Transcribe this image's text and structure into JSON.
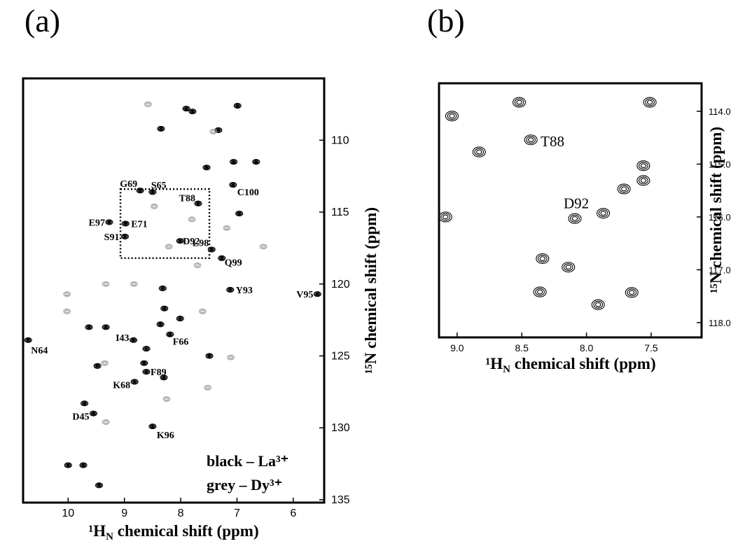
{
  "chart_data": [
    {
      "type": "scatter",
      "panel_label": "(a)",
      "xlabel": [
        "¹H",
        "N",
        " chemical shift (ppm)"
      ],
      "ylabel": "¹⁵N chemical shift (ppm)",
      "xlim": [
        10.8,
        5.45
      ],
      "ylim": [
        105.7,
        135.2
      ],
      "xticks": [
        10,
        9,
        8,
        7,
        6
      ],
      "yticks": [
        110,
        115,
        120,
        125,
        130,
        135
      ],
      "inset_box": {
        "x": [
          9.07,
          7.49
        ],
        "y": [
          113.4,
          118.2
        ]
      },
      "series": [
        {
          "name": "black – La³⁺",
          "color": "#000000",
          "x": [
            8.72,
            8.5,
            7.69,
            9.27,
            8.98,
            8.99,
            8.01,
            7.45,
            7.27,
            7.07,
            7.12,
            5.57,
            10.71,
            8.19,
            8.84,
            8.61,
            8.82,
            9.55,
            8.5,
            7.9,
            7.79,
            6.99,
            8.35,
            7.33,
            7.54,
            7.06,
            6.66,
            6.96,
            8.32,
            8.29,
            8.01,
            8.36,
            9.33,
            9.63,
            8.61,
            9.48,
            8.3,
            9.71,
            10.0,
            9.73,
            9.45,
            8.65,
            7.49
          ],
          "values": [
            113.5,
            113.6,
            114.4,
            115.7,
            115.8,
            116.7,
            117.0,
            117.6,
            118.2,
            113.1,
            120.4,
            120.7,
            123.9,
            123.5,
            123.9,
            126.1,
            126.8,
            129.0,
            129.9,
            107.8,
            108.0,
            107.6,
            109.2,
            109.3,
            111.9,
            111.5,
            111.5,
            115.1,
            120.3,
            121.7,
            122.4,
            122.8,
            123.0,
            123.0,
            124.5,
            125.7,
            126.5,
            128.3,
            132.6,
            132.6,
            134.0,
            125.5,
            125.0
          ],
          "labels": [
            "G69",
            "S65",
            "T88",
            "E97",
            "E71",
            "S91",
            "D92",
            "L98",
            "Q99",
            "C100",
            "Y93",
            "V95",
            "N64",
            "F66",
            "I43",
            "F89",
            "K68",
            "D45",
            "K96",
            null,
            null,
            null,
            null,
            null,
            null,
            null,
            null,
            null,
            null,
            null,
            null,
            null,
            null,
            null,
            null,
            null,
            null,
            null,
            null,
            null,
            null,
            null,
            null
          ]
        },
        {
          "name": "grey – Dy³⁺",
          "color": "#9a9a9a",
          "x": [
            8.58,
            7.42,
            8.47,
            7.8,
            8.21,
            7.7,
            9.33,
            8.83,
            10.02,
            10.02,
            7.61,
            9.35,
            7.11,
            7.52,
            8.25,
            9.33,
            6.53,
            7.18
          ],
          "values": [
            107.5,
            109.4,
            114.6,
            115.5,
            117.4,
            118.7,
            120.0,
            120.0,
            120.7,
            121.9,
            121.9,
            125.5,
            125.1,
            127.2,
            128.0,
            129.6,
            117.4,
            116.1
          ]
        }
      ]
    },
    {
      "type": "scatter",
      "panel_label": "(b)",
      "xlabel": [
        "¹H",
        "N",
        " chemical shift (ppm)"
      ],
      "ylabel": "¹⁵N chemical shift (ppm)",
      "xlim": [
        9.14,
        7.11
      ],
      "ylim": [
        113.47,
        118.28
      ],
      "xticks": [
        {
          "value": 9,
          "label": "9.0"
        },
        8.5,
        {
          "value": 8,
          "label": "8.0"
        },
        7.5
      ],
      "yticks": [
        {
          "value": 114,
          "label": "114.0"
        },
        {
          "value": 115,
          "label": "115.0"
        },
        {
          "value": 116,
          "label": "116.0"
        },
        {
          "value": 117,
          "label": "117.0"
        },
        {
          "value": 118,
          "label": "118.0"
        }
      ],
      "series": [
        {
          "name": null,
          "color": "#000000",
          "x": [
            8.43,
            8.09,
            9.04,
            8.52,
            8.83,
            7.51,
            7.56,
            7.56,
            7.71,
            7.87,
            8.34,
            8.14,
            8.36,
            7.65,
            7.91,
            9.09
          ],
          "values": [
            114.54,
            116.03,
            114.09,
            113.83,
            114.77,
            113.83,
            115.03,
            115.31,
            115.47,
            115.93,
            116.79,
            116.95,
            117.42,
            117.43,
            117.66,
            116.0
          ],
          "labels": [
            "T88",
            "D92",
            null,
            null,
            null,
            null,
            null,
            null,
            null,
            null,
            null,
            null,
            null,
            null,
            null,
            null
          ]
        }
      ]
    }
  ]
}
